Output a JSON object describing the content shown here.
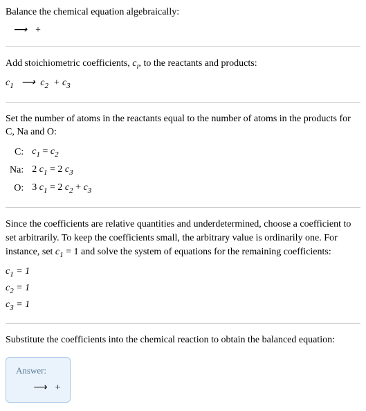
{
  "section1": {
    "title": "Balance the chemical equation algebraically:",
    "equation_arrow": "⟶",
    "equation_plus": "+"
  },
  "section2": {
    "intro_before": "Add stoichiometric coefficients, ",
    "intro_var": "c",
    "intro_sub": "i",
    "intro_after": ", to the reactants and products:",
    "c1": "c",
    "c1sub": "1",
    "arrow": "⟶",
    "c2": "c",
    "c2sub": "2",
    "plus": "+",
    "c3": "c",
    "c3sub": "3"
  },
  "section3": {
    "intro": "Set the number of atoms in the reactants equal to the number of atoms in the products for C, Na and O:",
    "rows": [
      {
        "label": "C:",
        "eq_lhs": "c",
        "eq_lhs_sub": "1",
        "eq_eq": " = ",
        "eq_rhs": "c",
        "eq_rhs_sub": "2",
        "extra": ""
      },
      {
        "label": "Na:",
        "eq_lhs_pre": "2 ",
        "eq_lhs": "c",
        "eq_lhs_sub": "1",
        "eq_eq": " = 2 ",
        "eq_rhs": "c",
        "eq_rhs_sub": "3",
        "extra": ""
      },
      {
        "label": "O:",
        "eq_lhs_pre": "3 ",
        "eq_lhs": "c",
        "eq_lhs_sub": "1",
        "eq_eq": " = 2 ",
        "eq_rhs": "c",
        "eq_rhs_sub": "2",
        "eq_plus": " + ",
        "eq_rhs2": "c",
        "eq_rhs2_sub": "3"
      }
    ]
  },
  "section4": {
    "intro_before": "Since the coefficients are relative quantities and underdetermined, choose a coefficient to set arbitrarily. To keep the coefficients small, the arbitrary value is ordinarily one. For instance, set ",
    "var": "c",
    "var_sub": "1",
    "intro_mid": " = 1 and solve the system of equations for the remaining coefficients:",
    "lines": [
      {
        "var": "c",
        "sub": "1",
        "val": " = 1"
      },
      {
        "var": "c",
        "sub": "2",
        "val": " = 1"
      },
      {
        "var": "c",
        "sub": "3",
        "val": " = 1"
      }
    ]
  },
  "section5": {
    "intro": "Substitute the coefficients into the chemical reaction to obtain the balanced equation:",
    "answer_label": "Answer:",
    "arrow": "⟶",
    "plus": "+"
  },
  "colors": {
    "divider": "#cccccc",
    "answer_bg": "#eaf3fb",
    "answer_border": "#a8c8e8",
    "answer_label_color": "#5a7a9a"
  }
}
